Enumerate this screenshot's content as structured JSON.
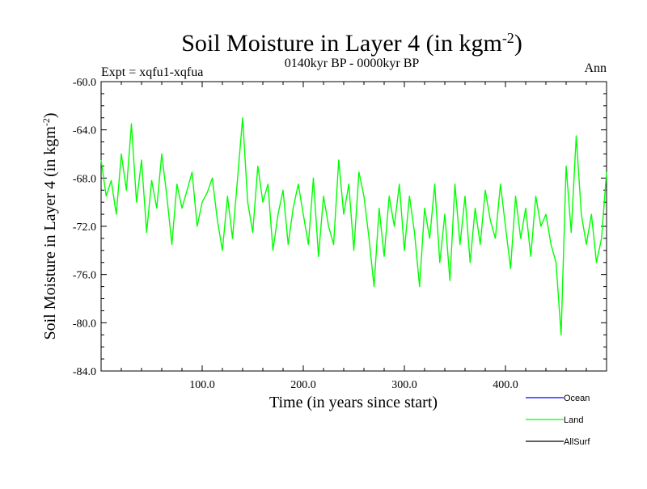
{
  "chart_data": {
    "type": "line",
    "title": "Soil Moisture in Layer 4 (in kgm",
    "title_sup": "-2",
    "title_close": ")",
    "subtitle_left": "Expt = xqfu1-xqfua",
    "subtitle_center": "0140kyr BP - 0000kyr BP",
    "subtitle_right": "Ann",
    "xlabel": "Time (in years since start)",
    "ylabel": "Soil Moisture in Layer 4 (in kgm",
    "ylabel_sup": "-2",
    "ylabel_close": ")",
    "xlim": [
      0,
      500
    ],
    "ylim": [
      -84,
      -60
    ],
    "xticks": [
      100,
      200,
      300,
      400
    ],
    "xtick_labels": [
      "100.0",
      "200.0",
      "300.0",
      "400.0"
    ],
    "yticks": [
      -60,
      -64,
      -68,
      -72,
      -76,
      -80,
      -84
    ],
    "ytick_labels": [
      "-60.0",
      "-64.0",
      "-68.0",
      "-72.0",
      "-76.0",
      "-80.0",
      "-84.0"
    ],
    "legend": [
      {
        "name": "Ocean",
        "color": "#0000ff"
      },
      {
        "name": "Land",
        "color": "#00ff00"
      },
      {
        "name": "AllSurf",
        "color": "#000000"
      }
    ],
    "series": [
      {
        "name": "Land",
        "color": "#00ff00",
        "x": [
          0,
          5,
          10,
          15,
          20,
          25,
          30,
          35,
          40,
          45,
          50,
          55,
          60,
          65,
          70,
          75,
          80,
          85,
          90,
          95,
          100,
          105,
          110,
          115,
          120,
          125,
          130,
          135,
          140,
          145,
          150,
          155,
          160,
          165,
          170,
          175,
          180,
          185,
          190,
          195,
          200,
          205,
          210,
          215,
          220,
          225,
          230,
          235,
          240,
          245,
          250,
          255,
          260,
          265,
          270,
          275,
          280,
          285,
          290,
          295,
          300,
          305,
          310,
          315,
          320,
          325,
          330,
          335,
          340,
          345,
          350,
          355,
          360,
          365,
          370,
          375,
          380,
          385,
          390,
          395,
          400,
          405,
          410,
          415,
          420,
          425,
          430,
          435,
          440,
          445,
          450,
          455,
          460,
          465,
          470,
          475,
          480,
          485,
          490,
          495,
          500
        ],
        "values": [
          -66.5,
          -69.5,
          -68.2,
          -71,
          -66,
          -69,
          -63.5,
          -70,
          -66.5,
          -72.5,
          -68.2,
          -70.5,
          -66,
          -69.5,
          -73.5,
          -68.5,
          -70.5,
          -69,
          -67.5,
          -72,
          -70,
          -69.2,
          -68,
          -71.5,
          -74,
          -69.5,
          -73,
          -68,
          -63,
          -70,
          -72.5,
          -67,
          -70,
          -68.5,
          -74,
          -71,
          -69,
          -73.5,
          -70.5,
          -68.5,
          -71,
          -73.5,
          -68,
          -74.5,
          -69.5,
          -72,
          -73.5,
          -66.5,
          -71,
          -68.5,
          -74,
          -67.5,
          -69.5,
          -73,
          -77,
          -70.5,
          -74.5,
          -69.5,
          -72,
          -68.5,
          -74,
          -69.5,
          -72.5,
          -77,
          -70.5,
          -73,
          -68.5,
          -75,
          -71,
          -76.5,
          -68.5,
          -73.5,
          -69.5,
          -75,
          -70.5,
          -73.5,
          -69,
          -71.5,
          -73,
          -68.5,
          -72,
          -75.5,
          -69.5,
          -73,
          -70.5,
          -74.5,
          -69.5,
          -72,
          -71,
          -73.5,
          -75,
          -81,
          -67,
          -72.5,
          -64.5,
          -71,
          -73.5,
          -71,
          -75,
          -73,
          -67.5
        ]
      }
    ]
  }
}
